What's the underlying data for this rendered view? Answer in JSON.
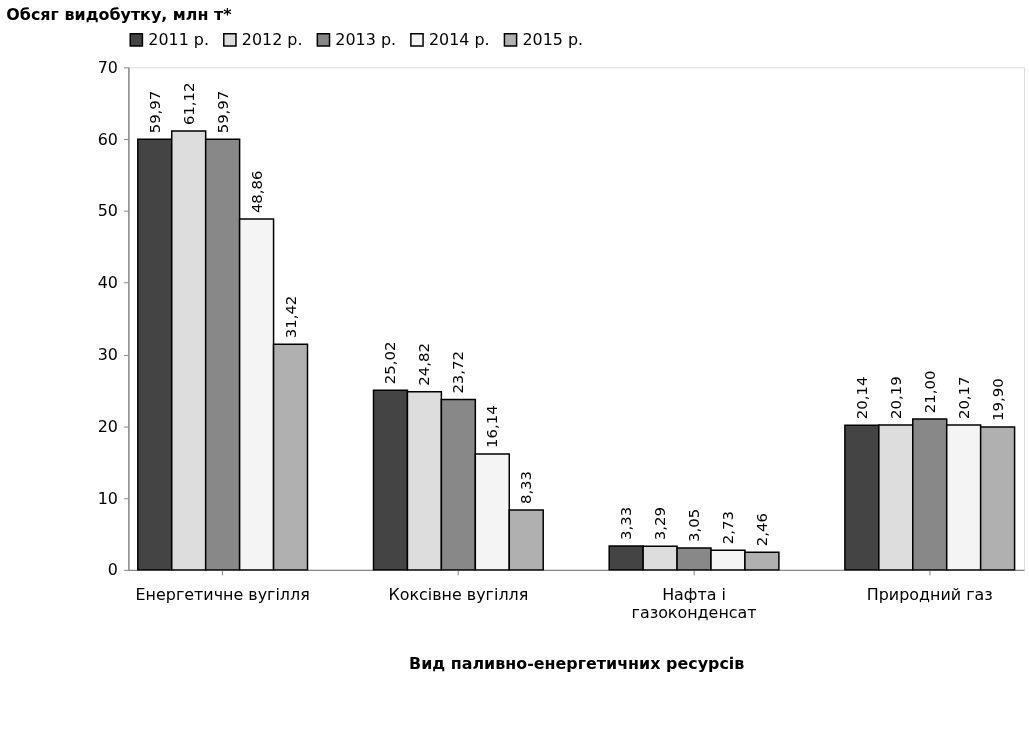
{
  "chart_data": {
    "type": "bar",
    "ylabel": "Обсяг видобутку, млн т*",
    "xlabel": "Вид паливно-енергетичних ресурсів",
    "categories": [
      "Енергетичне вугілля",
      "Коксівне вугілля",
      "Нафта і газоконденсат",
      "Природний газ"
    ],
    "series": [
      {
        "name": "2011 р.",
        "color": "#444444",
        "values": [
          59.97,
          25.02,
          3.33,
          20.14
        ],
        "value_labels": [
          "59,97",
          "25,02",
          "3,33",
          "20,14"
        ]
      },
      {
        "name": "2012 р.",
        "color": "#dddddd",
        "values": [
          61.12,
          24.82,
          3.29,
          20.19
        ],
        "value_labels": [
          "61,12",
          "24,82",
          "3,29",
          "20,19"
        ]
      },
      {
        "name": "2013 р.",
        "color": "#888888",
        "values": [
          59.97,
          23.72,
          3.05,
          21.0
        ],
        "value_labels": [
          "59,97",
          "23,72",
          "3,05",
          "21,00"
        ]
      },
      {
        "name": "2014 р.",
        "color": "#f4f4f4",
        "values": [
          48.86,
          16.14,
          2.73,
          20.17
        ],
        "value_labels": [
          "48,86",
          "16,14",
          "2,73",
          "20,17"
        ]
      },
      {
        "name": "2015 р.",
        "color": "#b0b0b0",
        "values": [
          31.42,
          8.33,
          2.46,
          19.9
        ],
        "value_labels": [
          "31,42",
          "8,33",
          "2,46",
          "19,90"
        ]
      }
    ],
    "ylim": [
      0,
      70
    ],
    "yticks": [
      0,
      10,
      20,
      30,
      40,
      50,
      60,
      70
    ],
    "grid": false,
    "legend": "top"
  }
}
